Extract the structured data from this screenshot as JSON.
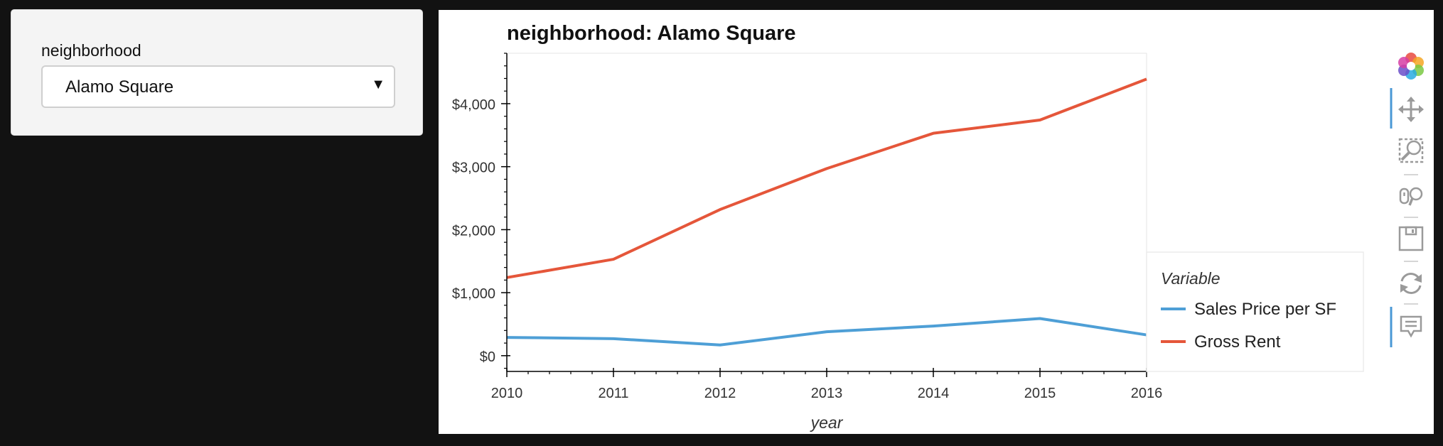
{
  "widget": {
    "label": "neighborhood",
    "selected": "Alamo Square"
  },
  "chart_data": {
    "type": "line",
    "title": "neighborhood: Alamo Square",
    "xlabel": "year",
    "ylabel": "",
    "x": [
      2010,
      2011,
      2012,
      2013,
      2014,
      2015,
      2016
    ],
    "x_tick_labels": [
      "2010",
      "2011",
      "2012",
      "2013",
      "2014",
      "2015",
      "2016"
    ],
    "xlim": [
      2010,
      2016
    ],
    "ylim": [
      -250,
      4800
    ],
    "y_ticks": [
      0,
      1000,
      2000,
      3000,
      4000
    ],
    "y_tick_labels": [
      "$0",
      "$1,000",
      "$2,000",
      "$3,000",
      "$4,000"
    ],
    "grid": false,
    "legend": {
      "title": "Variable",
      "placement": "right"
    },
    "series": [
      {
        "name": "Sales Price per SF",
        "color": "#4e9fd6",
        "values": [
          290,
          270,
          170,
          380,
          470,
          590,
          330
        ]
      },
      {
        "name": "Gross Rent",
        "color": "#e5563a",
        "values": [
          1240,
          1530,
          2320,
          2970,
          3530,
          3740,
          4390
        ]
      }
    ]
  },
  "toolbar": {
    "tools": [
      "bokeh-logo-icon",
      "pan-icon",
      "box-zoom-icon",
      "wheel-zoom-icon",
      "save-icon",
      "reset-icon",
      "hover-icon"
    ]
  }
}
